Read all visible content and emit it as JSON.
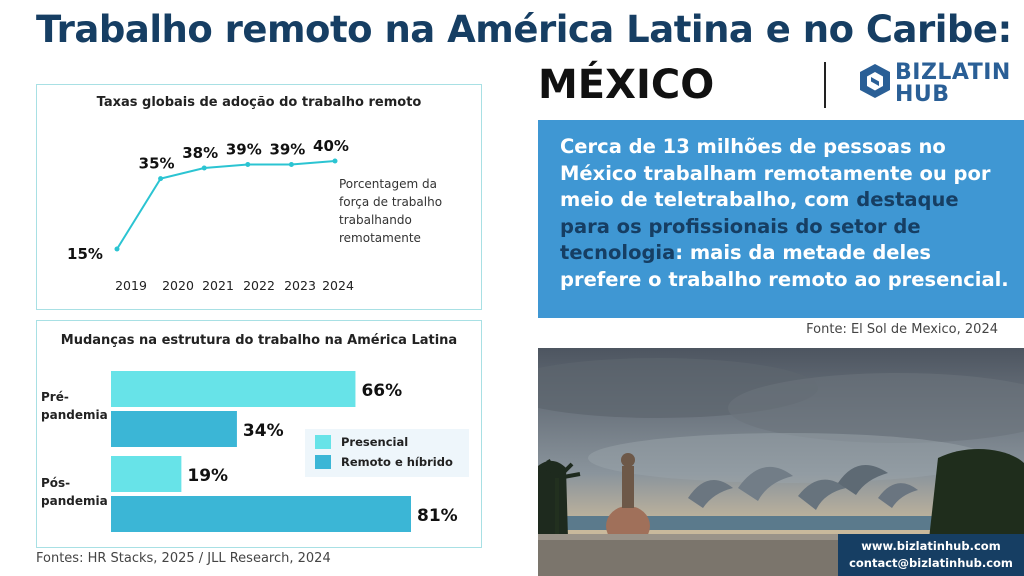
{
  "title": "Trabalho remoto na América Latina e no Caribe:",
  "country": "MÉXICO",
  "logo": {
    "line1": "BIZLATIN",
    "line2": "HUB"
  },
  "adoption_chart": {
    "title": "Taxas globais de adoção do trabalho remoto",
    "note": "Porcentagem da força de trabalho trabalhando remotamente",
    "color": "#2bc4d2"
  },
  "structure_chart": {
    "title": "Mudanças na estrutura do trabalho na América Latina",
    "legend": [
      "Presencial",
      "Remoto e híbrido"
    ],
    "colors": {
      "presencial": "#67e3e8",
      "remoto": "#3bb6d6"
    }
  },
  "chart_data": [
    {
      "type": "line",
      "title": "Taxas globais de adoção do trabalho remoto",
      "x": [
        "2019",
        "2020",
        "2021",
        "2022",
        "2023",
        "2024"
      ],
      "values": [
        15,
        35,
        38,
        39,
        39,
        40
      ],
      "labels": [
        "15%",
        "35%",
        "38%",
        "39%",
        "39%",
        "40%"
      ]
    },
    {
      "type": "bar",
      "title": "Mudanças na estrutura do trabalho na América Latina",
      "categories": [
        "Pré-pandemia",
        "Pós-pandemia"
      ],
      "series": [
        {
          "name": "Presencial",
          "values": [
            66,
            19
          ]
        },
        {
          "name": "Remoto e híbrido",
          "values": [
            34,
            81
          ]
        }
      ]
    }
  ],
  "sources": "Fontes: HR Stacks, 2025 / JLL Research, 2024",
  "highlight": {
    "part1": "Cerca de 13 milhões de pessoas no México trabalham remotamente ou por meio de teletrabalho, com ",
    "part2": "destaque para os profissionais do setor de tecnologia",
    "part3": ": mais da metade deles prefere o trabalho remoto ao presencial."
  },
  "fonte": "Fonte: El Sol de Mexico, 2024",
  "contact": {
    "web": "www.bizlatinhub.com",
    "email": "contact@bizlatinhub.com"
  }
}
